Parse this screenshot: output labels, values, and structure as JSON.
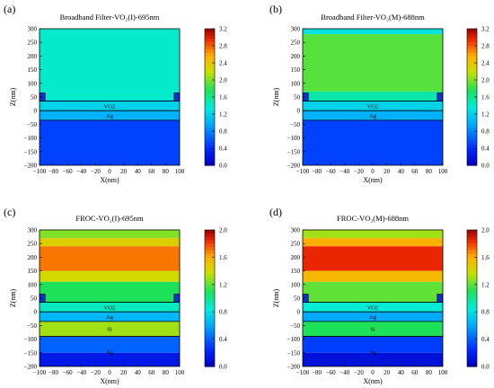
{
  "chart_data": [
    {
      "type": "heatmap",
      "panel_label": "(a)",
      "title": "Broadband Filter-VO₂(I)-695nm",
      "xlabel": "X(nm)",
      "ylabel": "Z(nm)",
      "xlim": [
        -100,
        100
      ],
      "ylim": [
        -200,
        300
      ],
      "x_ticks": [
        "−100",
        "−80",
        "−60",
        "−40",
        "−20",
        "0",
        "20",
        "40",
        "60",
        "80",
        "100"
      ],
      "y_ticks": [
        "300",
        "250",
        "200",
        "150",
        "100",
        "50",
        "0",
        "−50",
        "−100",
        "−150",
        "−200"
      ],
      "colorbar": {
        "min": 0.0,
        "max": 3.2,
        "ticks": [
          "3.2",
          "2.8",
          "2.4",
          "2.0",
          "1.6",
          "1.2",
          "0.8",
          "0.4",
          "0.0"
        ]
      },
      "layers": [
        {
          "label": "VO2",
          "z_top": 35,
          "z_bottom": 0
        },
        {
          "label": "Ag",
          "z_top": 0,
          "z_bottom": -35
        }
      ],
      "regions": [
        {
          "z_top": 300,
          "z_bottom": 40,
          "value": 1.4
        },
        {
          "z_top": 40,
          "z_bottom": 0,
          "value": 1.2
        },
        {
          "z_top": 0,
          "z_bottom": -35,
          "value": 1.0
        },
        {
          "z_top": -35,
          "z_bottom": -200,
          "value": 0.5
        }
      ]
    },
    {
      "type": "heatmap",
      "panel_label": "(b)",
      "title": "Broadband Filter-VO₂(M)-688nm",
      "xlabel": "X(nm)",
      "ylabel": "Z(nm)",
      "xlim": [
        -100,
        100
      ],
      "ylim": [
        -200,
        300
      ],
      "x_ticks": [
        "−100",
        "−80",
        "−60",
        "−40",
        "−20",
        "0",
        "20",
        "40",
        "60",
        "80",
        "100"
      ],
      "y_ticks": [
        "300",
        "250",
        "200",
        "150",
        "100",
        "50",
        "0",
        "−50",
        "−100",
        "−150",
        "−200"
      ],
      "colorbar": {
        "min": 0.0,
        "max": 3.2,
        "ticks": [
          "3.2",
          "2.8",
          "2.4",
          "2.0",
          "1.6",
          "1.2",
          "0.8",
          "0.4",
          "0.0"
        ]
      },
      "layers": [
        {
          "label": "VO2",
          "z_top": 35,
          "z_bottom": 0
        },
        {
          "label": "Ag",
          "z_top": 0,
          "z_bottom": -35
        }
      ],
      "regions": [
        {
          "z_top": 300,
          "z_bottom": 280,
          "value": 1.3
        },
        {
          "z_top": 280,
          "z_bottom": 70,
          "value": 1.9
        },
        {
          "z_top": 70,
          "z_bottom": 35,
          "value": 1.5
        },
        {
          "z_top": 35,
          "z_bottom": 0,
          "value": 1.2
        },
        {
          "z_top": 0,
          "z_bottom": -35,
          "value": 1.0
        },
        {
          "z_top": -35,
          "z_bottom": -200,
          "value": 0.5
        }
      ]
    },
    {
      "type": "heatmap",
      "panel_label": "(c)",
      "title": "FROC-VO₂(I)-695nm",
      "xlabel": "X(nm)",
      "ylabel": "Z(nm)",
      "xlim": [
        -100,
        100
      ],
      "ylim": [
        -200,
        300
      ],
      "x_ticks": [
        "−100",
        "−80",
        "−60",
        "−40",
        "−20",
        "0",
        "20",
        "40",
        "60",
        "80",
        "100"
      ],
      "y_ticks": [
        "300",
        "250",
        "200",
        "150",
        "100",
        "50",
        "0",
        "−50",
        "−100",
        "−150",
        "−200"
      ],
      "colorbar": {
        "min": 0.0,
        "max": 2.0,
        "ticks": [
          "2.0",
          "1.6",
          "1.2",
          "0.8",
          "0.4",
          "0.0"
        ]
      },
      "layers": [
        {
          "label": "VO2",
          "z_top": 35,
          "z_bottom": 0
        },
        {
          "label": "Ag",
          "z_top": 0,
          "z_bottom": -35
        },
        {
          "label": "Si",
          "z_top": -35,
          "z_bottom": -90
        },
        {
          "label": "Ag",
          "z_top": -90,
          "z_bottom": -200
        }
      ],
      "regions": [
        {
          "z_top": 300,
          "z_bottom": 270,
          "value": 1.25
        },
        {
          "z_top": 270,
          "z_bottom": 240,
          "value": 1.45
        },
        {
          "z_top": 240,
          "z_bottom": 150,
          "value": 1.7
        },
        {
          "z_top": 150,
          "z_bottom": 110,
          "value": 1.4
        },
        {
          "z_top": 110,
          "z_bottom": 35,
          "value": 1.1
        },
        {
          "z_top": 35,
          "z_bottom": 0,
          "value": 0.9
        },
        {
          "z_top": 0,
          "z_bottom": -35,
          "value": 0.65
        },
        {
          "z_top": -35,
          "z_bottom": -90,
          "value": 1.3
        },
        {
          "z_top": -90,
          "z_bottom": -150,
          "value": 0.4
        },
        {
          "z_top": -150,
          "z_bottom": -200,
          "value": 0.15
        }
      ]
    },
    {
      "type": "heatmap",
      "panel_label": "(d)",
      "title": "FROC-VO₂(M)-688nm",
      "xlabel": "X(nm)",
      "ylabel": "Z(nm)",
      "xlim": [
        -100,
        100
      ],
      "ylim": [
        -200,
        300
      ],
      "x_ticks": [
        "−100",
        "−80",
        "−60",
        "−40",
        "−20",
        "0",
        "20",
        "40",
        "60",
        "80",
        "100"
      ],
      "y_ticks": [
        "300",
        "250",
        "200",
        "150",
        "100",
        "50",
        "0",
        "−50",
        "−100",
        "−150",
        "−200"
      ],
      "colorbar": {
        "min": 0.0,
        "max": 2.0,
        "ticks": [
          "2.0",
          "1.6",
          "1.2",
          "0.8",
          "0.4",
          "0.0"
        ]
      },
      "layers": [
        {
          "label": "VO2",
          "z_top": 35,
          "z_bottom": 0
        },
        {
          "label": "Ag",
          "z_top": 0,
          "z_bottom": -35
        },
        {
          "label": "Si",
          "z_top": -35,
          "z_bottom": -90
        },
        {
          "label": "Ag",
          "z_top": -90,
          "z_bottom": -200
        }
      ],
      "regions": [
        {
          "z_top": 300,
          "z_bottom": 270,
          "value": 1.3
        },
        {
          "z_top": 270,
          "z_bottom": 240,
          "value": 1.6
        },
        {
          "z_top": 240,
          "z_bottom": 150,
          "value": 1.85
        },
        {
          "z_top": 150,
          "z_bottom": 110,
          "value": 1.55
        },
        {
          "z_top": 110,
          "z_bottom": 35,
          "value": 1.2
        },
        {
          "z_top": 35,
          "z_bottom": 0,
          "value": 0.85
        },
        {
          "z_top": 0,
          "z_bottom": -35,
          "value": 0.6
        },
        {
          "z_top": -35,
          "z_bottom": -90,
          "value": 1.1
        },
        {
          "z_top": -90,
          "z_bottom": -150,
          "value": 0.3
        },
        {
          "z_top": -150,
          "z_bottom": -200,
          "value": 0.1
        }
      ]
    }
  ]
}
